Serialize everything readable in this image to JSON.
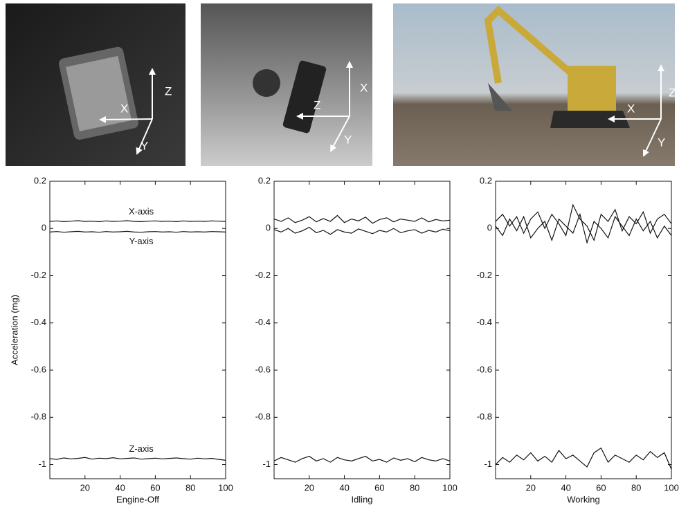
{
  "photos": [
    {
      "labels": [
        "Z",
        "X",
        "Y"
      ]
    },
    {
      "labels": [
        "X",
        "Z",
        "Y"
      ]
    },
    {
      "labels": [
        "Z",
        "X",
        "Y"
      ]
    }
  ],
  "chart_data": [
    {
      "type": "line",
      "xlabel": "Engine-Off",
      "ylabel": "Acceleration (mg)",
      "x": [
        0,
        4,
        8,
        12,
        16,
        20,
        24,
        28,
        32,
        36,
        40,
        44,
        48,
        52,
        56,
        60,
        64,
        68,
        72,
        76,
        80,
        84,
        88,
        92,
        96,
        100
      ],
      "xlim": [
        0,
        100
      ],
      "xticks": [
        20,
        40,
        60,
        80,
        100
      ],
      "ylim": [
        -1.06,
        0.2
      ],
      "yticks": [
        0.2,
        0,
        -0.2,
        -0.4,
        -0.6,
        -0.8,
        -1
      ],
      "series": [
        {
          "name": "X-axis",
          "color": "#111111",
          "values": [
            0.03,
            0.032,
            0.029,
            0.031,
            0.033,
            0.03,
            0.031,
            0.029,
            0.032,
            0.03,
            0.031,
            0.033,
            0.03,
            0.029,
            0.031,
            0.032,
            0.03,
            0.031,
            0.029,
            0.032,
            0.03,
            0.031,
            0.03,
            0.032,
            0.031,
            0.03
          ]
        },
        {
          "name": "Y-axis",
          "color": "#111111",
          "values": [
            -0.015,
            -0.013,
            -0.016,
            -0.014,
            -0.012,
            -0.015,
            -0.014,
            -0.016,
            -0.013,
            -0.015,
            -0.014,
            -0.012,
            -0.015,
            -0.016,
            -0.014,
            -0.013,
            -0.015,
            -0.014,
            -0.016,
            -0.013,
            -0.015,
            -0.014,
            -0.015,
            -0.013,
            -0.014,
            -0.015
          ]
        },
        {
          "name": "Z-axis",
          "color": "#111111",
          "values": [
            -0.975,
            -0.978,
            -0.972,
            -0.976,
            -0.974,
            -0.97,
            -0.977,
            -0.973,
            -0.975,
            -0.971,
            -0.976,
            -0.974,
            -0.972,
            -0.977,
            -0.975,
            -0.973,
            -0.976,
            -0.974,
            -0.972,
            -0.975,
            -0.977,
            -0.973,
            -0.976,
            -0.974,
            -0.978,
            -0.982
          ]
        }
      ]
    },
    {
      "type": "line",
      "xlabel": "Idling",
      "x": [
        0,
        4,
        8,
        12,
        16,
        20,
        24,
        28,
        32,
        36,
        40,
        44,
        48,
        52,
        56,
        60,
        64,
        68,
        72,
        76,
        80,
        84,
        88,
        92,
        96,
        100
      ],
      "xlim": [
        0,
        100
      ],
      "xticks": [
        20,
        40,
        60,
        80,
        100
      ],
      "ylim": [
        -1.06,
        0.2
      ],
      "yticks": [
        0.2,
        0,
        -0.2,
        -0.4,
        -0.6,
        -0.8,
        -1
      ],
      "series": [
        {
          "color": "#111111",
          "values": [
            0.04,
            0.03,
            0.045,
            0.025,
            0.035,
            0.05,
            0.028,
            0.042,
            0.03,
            0.055,
            0.025,
            0.04,
            0.032,
            0.048,
            0.022,
            0.038,
            0.045,
            0.028,
            0.04,
            0.035,
            0.03,
            0.045,
            0.028,
            0.038,
            0.032,
            0.035
          ]
        },
        {
          "color": "#111111",
          "values": [
            -0.005,
            -0.015,
            0.0,
            -0.02,
            -0.01,
            0.005,
            -0.018,
            -0.008,
            -0.025,
            -0.005,
            -0.015,
            -0.02,
            -0.002,
            -0.012,
            -0.022,
            -0.008,
            -0.015,
            0.0,
            -0.018,
            -0.01,
            -0.005,
            -0.02,
            -0.008,
            -0.015,
            -0.003,
            -0.01
          ]
        },
        {
          "color": "#111111",
          "values": [
            -0.985,
            -0.97,
            -0.98,
            -0.99,
            -0.975,
            -0.965,
            -0.985,
            -0.975,
            -0.99,
            -0.97,
            -0.98,
            -0.985,
            -0.975,
            -0.965,
            -0.985,
            -0.978,
            -0.99,
            -0.972,
            -0.982,
            -0.975,
            -0.988,
            -0.97,
            -0.98,
            -0.985,
            -0.975,
            -0.985
          ]
        }
      ]
    },
    {
      "type": "line",
      "xlabel": "Working",
      "x": [
        0,
        4,
        8,
        12,
        16,
        20,
        24,
        28,
        32,
        36,
        40,
        44,
        48,
        52,
        56,
        60,
        64,
        68,
        72,
        76,
        80,
        84,
        88,
        92,
        96,
        100
      ],
      "xlim": [
        0,
        100
      ],
      "xticks": [
        20,
        40,
        60,
        80,
        100
      ],
      "ylim": [
        -1.06,
        0.2
      ],
      "yticks": [
        0.2,
        0,
        -0.2,
        -0.4,
        -0.6,
        -0.8,
        -1
      ],
      "series": [
        {
          "color": "#111111",
          "values": [
            0.03,
            0.06,
            0.01,
            0.05,
            -0.02,
            0.04,
            0.07,
            0.0,
            0.06,
            0.02,
            -0.03,
            0.1,
            0.04,
            0.01,
            -0.05,
            0.06,
            0.03,
            0.08,
            -0.01,
            0.05,
            0.02,
            0.07,
            -0.02,
            0.04,
            0.06,
            0.02
          ]
        },
        {
          "color": "#111111",
          "values": [
            0.01,
            -0.03,
            0.04,
            -0.01,
            0.05,
            -0.04,
            0.0,
            0.03,
            -0.05,
            0.04,
            0.01,
            -0.02,
            0.06,
            -0.06,
            0.03,
            0.0,
            -0.04,
            0.05,
            0.01,
            -0.03,
            0.04,
            -0.01,
            0.03,
            -0.04,
            0.01,
            -0.03
          ]
        },
        {
          "color": "#111111",
          "values": [
            -1.0,
            -0.97,
            -0.99,
            -0.96,
            -0.98,
            -0.95,
            -0.985,
            -0.965,
            -0.99,
            -0.94,
            -0.975,
            -0.96,
            -0.985,
            -1.01,
            -0.95,
            -0.93,
            -0.99,
            -0.96,
            -0.975,
            -0.99,
            -0.96,
            -0.98,
            -0.945,
            -0.97,
            -0.95,
            -1.02
          ]
        }
      ]
    }
  ]
}
